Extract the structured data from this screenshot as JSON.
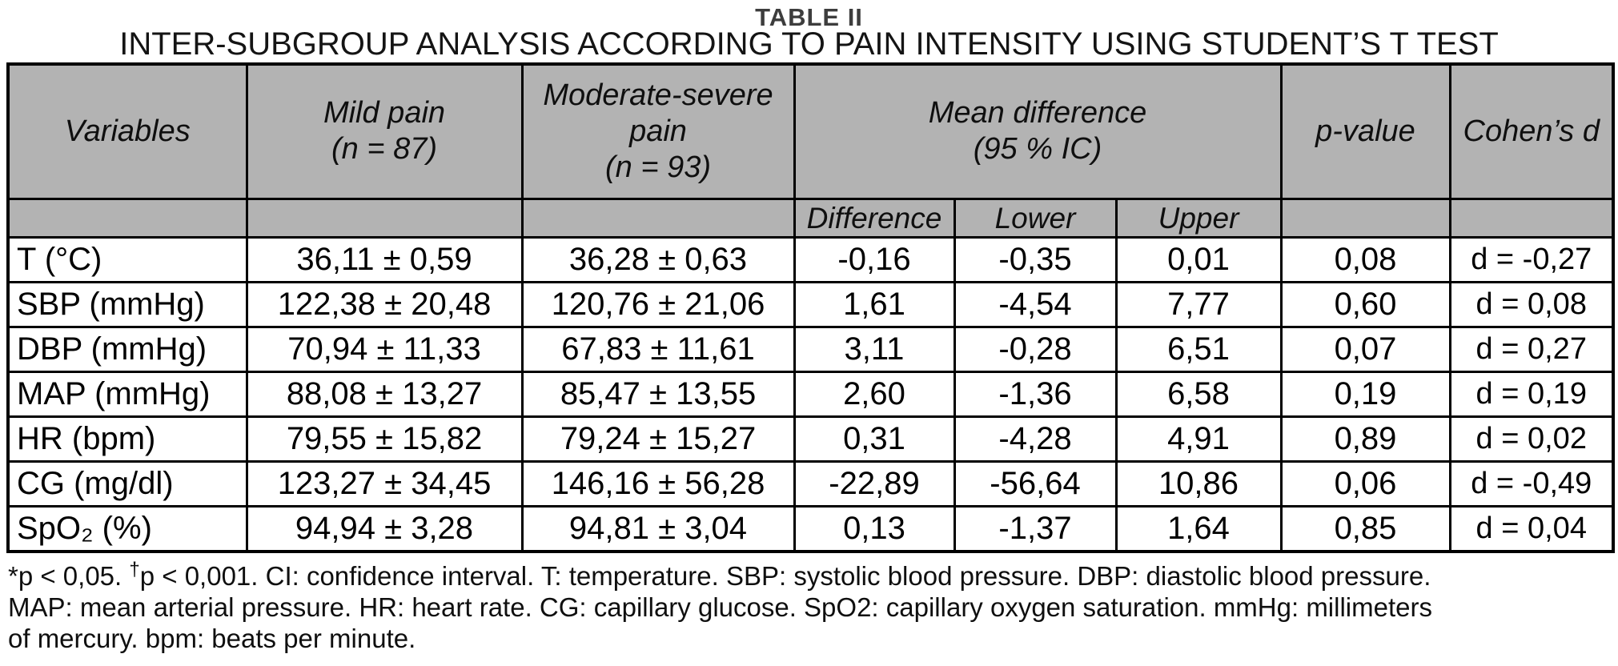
{
  "title": {
    "line1": "TABLE II",
    "line2": "INTER-SUBGROUP ANALYSIS ACCORDING TO PAIN INTENSITY USING STUDENT’S T TEST"
  },
  "table": {
    "header": {
      "variables": "Variables",
      "mild": "Mild pain\n(n = 87)",
      "moderate": "Moderate-severe\npain\n(n = 93)",
      "mean_difference": "Mean difference\n(95 % IC)",
      "p_value": "p-value",
      "cohens_d": "Cohen’s d",
      "sub": {
        "difference": "Difference",
        "lower": "Lower",
        "upper": "Upper"
      }
    },
    "rows": [
      {
        "variable": "T (°C)",
        "mild": "36,11 ± 0,59",
        "moderate": "36,28 ± 0,63",
        "difference": "-0,16",
        "lower": "-0,35",
        "upper": "0,01",
        "p_value": "0,08",
        "cohens_d": "d = -0,27"
      },
      {
        "variable": "SBP (mmHg)",
        "mild": "122,38 ± 20,48",
        "moderate": "120,76 ± 21,06",
        "difference": "1,61",
        "lower": "-4,54",
        "upper": "7,77",
        "p_value": "0,60",
        "cohens_d": "d = 0,08"
      },
      {
        "variable": "DBP (mmHg)",
        "mild": "70,94 ± 11,33",
        "moderate": "67,83 ± 11,61",
        "difference": "3,11",
        "lower": "-0,28",
        "upper": "6,51",
        "p_value": "0,07",
        "cohens_d": "d = 0,27"
      },
      {
        "variable": "MAP (mmHg)",
        "mild": "88,08 ± 13,27",
        "moderate": "85,47 ± 13,55",
        "difference": "2,60",
        "lower": "-1,36",
        "upper": "6,58",
        "p_value": "0,19",
        "cohens_d": "d = 0,19"
      },
      {
        "variable": "HR (bpm)",
        "mild": "79,55 ± 15,82",
        "moderate": "79,24 ± 15,27",
        "difference": "0,31",
        "lower": "-4,28",
        "upper": "4,91",
        "p_value": "0,89",
        "cohens_d": "d = 0,02"
      },
      {
        "variable": "CG (mg/dl)",
        "mild": "123,27 ± 34,45",
        "moderate": "146,16 ± 56,28",
        "difference": "-22,89",
        "lower": "-56,64",
        "upper": "10,86",
        "p_value": "0,06",
        "cohens_d": "d = -0,49"
      },
      {
        "variable": "SpO₂ (%)",
        "mild": "94,94 ± 3,28",
        "moderate": "94,81 ± 3,04",
        "difference": "0,13",
        "lower": "-1,37",
        "upper": "1,64",
        "p_value": "0,85",
        "cohens_d": "d = 0,04"
      }
    ]
  },
  "footnote": {
    "line1_pre": "*p < 0,05. ",
    "line1_dagger": "†",
    "line1_post": "p < 0,001. CI: confidence interval. T: temperature. SBP: systolic blood pressure. DBP: diastolic blood pressure.",
    "line2": "MAP: mean arterial pressure. HR: heart rate. CG: capillary glucose. SpO2: capillary oxygen saturation. mmHg: millimeters",
    "line3": "of mercury. bpm: beats per minute."
  },
  "colors": {
    "header_bg": "#b3b3b3",
    "border": "#000000",
    "title": "#3d3d3d",
    "text": "#0f0f0f"
  }
}
